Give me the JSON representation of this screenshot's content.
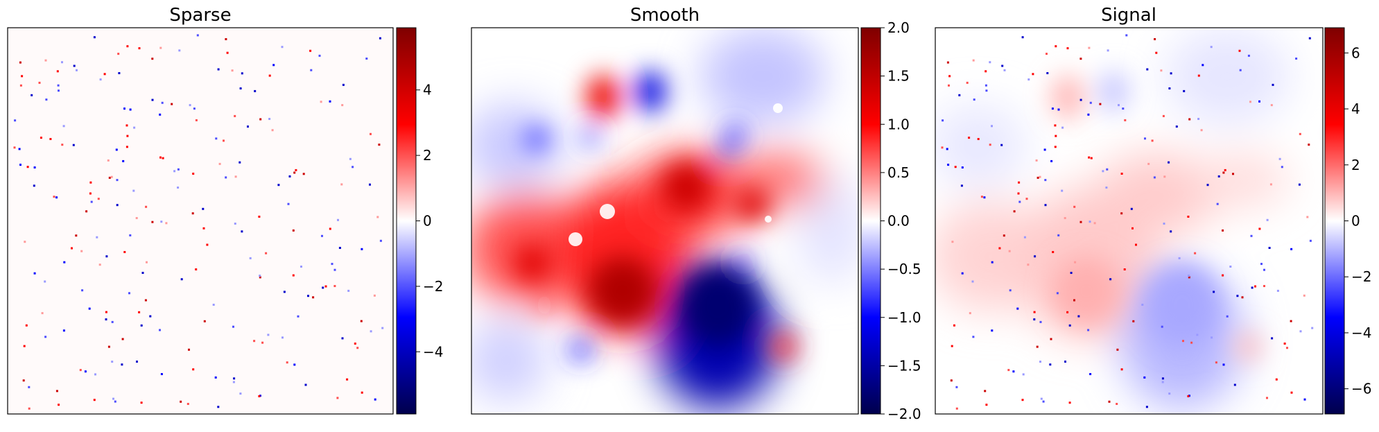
{
  "colors": {
    "cmap_low": "#00004c",
    "cmap_mid_low": "#0000ff",
    "cmap_zero": "#ffffff",
    "cmap_mid_high": "#ff0000",
    "cmap_high": "#7f0000",
    "frame": "#000000",
    "background": "#ffffff"
  },
  "chart_data": [
    {
      "type": "heatmap",
      "title": "Sparse",
      "colormap": "seismic",
      "vlim": [
        -5.9,
        5.9
      ],
      "ticks": [
        -4,
        -2,
        0,
        2,
        4
      ],
      "tick_labels": [
        "−4",
        "−2",
        "0",
        "2",
        "4"
      ],
      "xticks": [],
      "yticks": [],
      "grid": false
    },
    {
      "type": "heatmap",
      "title": "Smooth",
      "colormap": "seismic",
      "vlim": [
        -2.0,
        2.0
      ],
      "ticks": [
        2.0,
        1.5,
        1.0,
        0.5,
        0.0,
        -0.5,
        -1.0,
        -1.5,
        -2.0
      ],
      "tick_labels": [
        "2.0",
        "1.5",
        "1.0",
        "0.5",
        "0.0",
        "−0.5",
        "−1.0",
        "−1.5",
        "−2.0"
      ],
      "xticks": [],
      "yticks": [],
      "grid": false
    },
    {
      "type": "heatmap",
      "title": "Signal",
      "colormap": "seismic",
      "vlim": [
        -6.9,
        6.9
      ],
      "ticks": [
        6,
        4,
        2,
        0,
        -2,
        -4,
        -6
      ],
      "tick_labels": [
        "6",
        "4",
        "2",
        "0",
        "−2",
        "−4",
        "−6"
      ],
      "xticks": [],
      "yticks": [],
      "grid": false
    }
  ]
}
